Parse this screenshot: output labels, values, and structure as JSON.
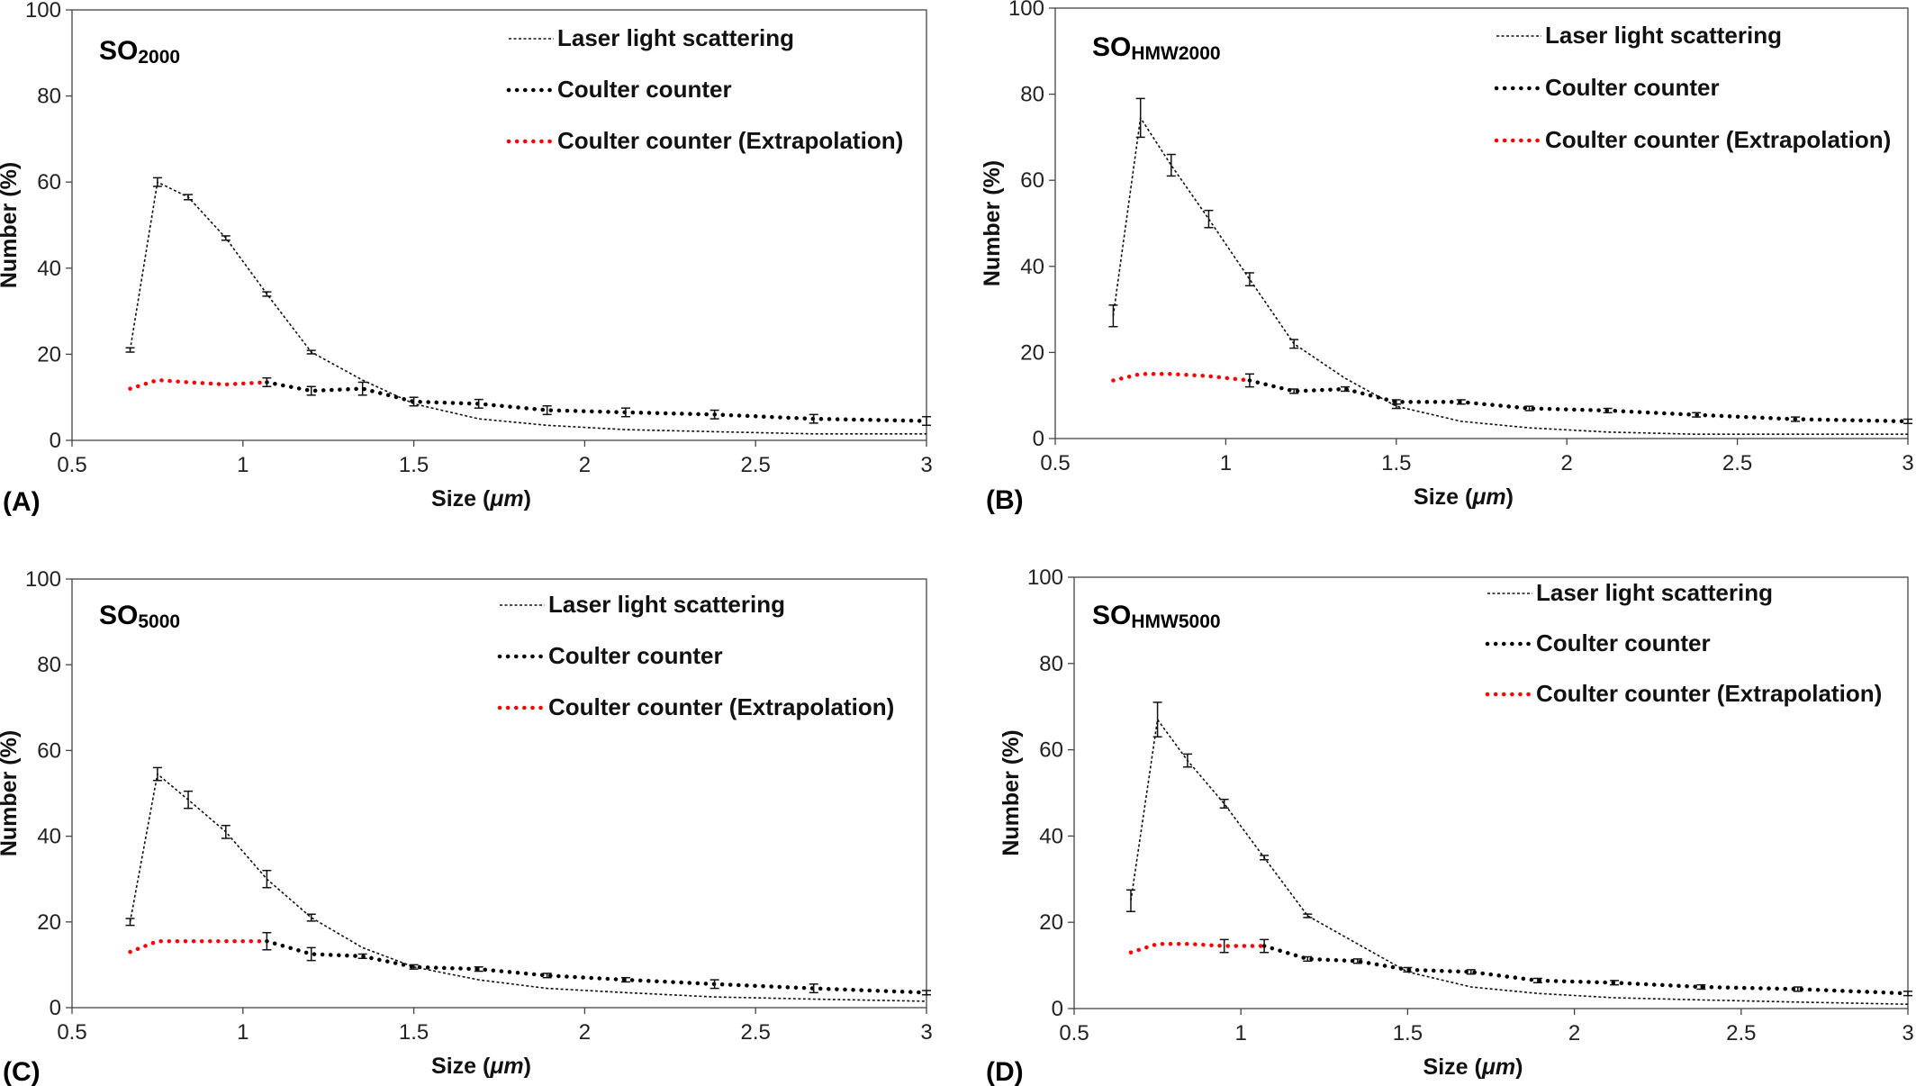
{
  "colors": {
    "laser": "#111111",
    "coulter": "#000000",
    "extrapolation": "#ff0000"
  },
  "chart_data": [
    {
      "type": "line",
      "panel_label": "(A)",
      "title_main": "SO",
      "title_sub": "2000",
      "xlabel_prefix": "Size (",
      "xlabel_unit": "μm",
      "xlabel_suffix": ")",
      "ylabel": "Number (%)",
      "xlim": [
        0.5,
        3
      ],
      "ylim": [
        0,
        100
      ],
      "xticks": [
        0.5,
        1,
        1.5,
        2,
        2.5,
        3
      ],
      "xtick_labels": [
        "0.5",
        "1",
        "1.5",
        "2",
        "2.5",
        "3"
      ],
      "yticks": [
        0,
        20,
        40,
        60,
        80,
        100
      ],
      "ytick_labels": [
        "0",
        "20",
        "40",
        "60",
        "80",
        "100"
      ],
      "legend": [
        "Laser light scattering",
        "Coulter counter",
        "Coulter counter (Extrapolation)"
      ],
      "series": [
        {
          "name": "Laser light scattering",
          "style": "thin-dotted",
          "x": [
            0.67,
            0.75,
            0.84,
            0.95,
            1.07,
            1.2,
            1.35,
            1.5,
            1.69,
            1.89,
            2.12,
            2.38,
            2.67,
            3.0
          ],
          "y": [
            21,
            60,
            56.5,
            47,
            34,
            20.5,
            14,
            8.5,
            5,
            3.5,
            2.5,
            2,
            1.5,
            1.5
          ],
          "err": [
            0.5,
            1,
            0.6,
            0.5,
            0.5,
            0.4,
            0,
            0,
            0,
            0,
            0,
            0,
            0,
            0
          ]
        },
        {
          "name": "Coulter counter",
          "style": "thick-dotted",
          "x": [
            1.07,
            1.2,
            1.35,
            1.5,
            1.69,
            1.89,
            2.12,
            2.38,
            2.67,
            3.0
          ],
          "y": [
            13.5,
            11.5,
            12,
            9,
            8.5,
            7,
            6.5,
            6,
            5,
            4.5
          ],
          "err": [
            1,
            1,
            1.5,
            1,
            1,
            1,
            1,
            1,
            1,
            1
          ]
        },
        {
          "name": "Coulter counter (Extrapolation)",
          "style": "red-dotted",
          "x": [
            0.67,
            0.75,
            0.84,
            0.95,
            1.07
          ],
          "y": [
            12,
            14,
            13.5,
            13,
            13.5
          ],
          "err": []
        }
      ]
    },
    {
      "type": "line",
      "panel_label": "(B)",
      "title_main": "SO",
      "title_sub": "HMW2000",
      "xlabel_prefix": "Size (",
      "xlabel_unit": "μm",
      "xlabel_suffix": ")",
      "ylabel": "Number (%)",
      "xlim": [
        0.5,
        3
      ],
      "ylim": [
        0,
        100
      ],
      "xticks": [
        0.5,
        1,
        1.5,
        2,
        2.5,
        3
      ],
      "xtick_labels": [
        "0.5",
        "1",
        "1.5",
        "2",
        "2.5",
        "3"
      ],
      "yticks": [
        0,
        20,
        40,
        60,
        80,
        100
      ],
      "ytick_labels": [
        "0",
        "20",
        "40",
        "60",
        "80",
        "100"
      ],
      "legend": [
        "Laser light scattering",
        "Coulter counter",
        "Coulter counter (Extrapolation)"
      ],
      "series": [
        {
          "name": "Laser light scattering",
          "style": "thin-dotted",
          "x": [
            0.67,
            0.75,
            0.84,
            0.95,
            1.07,
            1.2,
            1.35,
            1.5,
            1.69,
            1.89,
            2.12,
            2.38,
            2.67,
            3.0
          ],
          "y": [
            28.5,
            74.5,
            63.5,
            51,
            37,
            22,
            14,
            7.5,
            4,
            2.5,
            1.5,
            1,
            1,
            1
          ],
          "err": [
            2.5,
            4.5,
            2.5,
            2,
            1.5,
            1,
            0,
            0.5,
            0,
            0,
            0,
            0,
            0,
            0
          ]
        },
        {
          "name": "Coulter counter",
          "style": "thick-dotted",
          "x": [
            1.07,
            1.2,
            1.35,
            1.5,
            1.69,
            1.89,
            2.12,
            2.38,
            2.67,
            3.0
          ],
          "y": [
            13.5,
            11,
            11.5,
            8.5,
            8.5,
            7,
            6.5,
            5.5,
            4.5,
            4
          ],
          "err": [
            1.5,
            0.5,
            0.5,
            0.5,
            0.5,
            0.5,
            0.5,
            0.5,
            0.5,
            0.5
          ]
        },
        {
          "name": "Coulter counter (Extrapolation)",
          "style": "red-dotted",
          "x": [
            0.67,
            0.75,
            0.84,
            0.95,
            1.07
          ],
          "y": [
            13.5,
            15,
            15,
            14.5,
            13.5
          ],
          "err": []
        }
      ]
    },
    {
      "type": "line",
      "panel_label": "(C)",
      "title_main": "SO",
      "title_sub": "5000",
      "xlabel_prefix": "Size (",
      "xlabel_unit": "μm",
      "xlabel_suffix": ")",
      "ylabel": "Number (%)",
      "xlim": [
        0.5,
        3
      ],
      "ylim": [
        0,
        100
      ],
      "xticks": [
        0.5,
        1,
        1.5,
        2,
        2.5,
        3
      ],
      "xtick_labels": [
        "0.5",
        "1",
        "1.5",
        "2",
        "2.5",
        "3"
      ],
      "yticks": [
        0,
        20,
        40,
        60,
        80,
        100
      ],
      "ytick_labels": [
        "0",
        "20",
        "40",
        "60",
        "80",
        "100"
      ],
      "legend": [
        "Laser light scattering",
        "Coulter counter",
        "Coulter counter (Extrapolation)"
      ],
      "series": [
        {
          "name": "Laser light scattering",
          "style": "thin-dotted",
          "x": [
            0.67,
            0.75,
            0.84,
            0.95,
            1.07,
            1.2,
            1.35,
            1.5,
            1.69,
            1.89,
            2.12,
            2.38,
            2.67,
            3.0
          ],
          "y": [
            20,
            54.5,
            48.5,
            41,
            30,
            21,
            14,
            9.5,
            6.5,
            4.5,
            3.5,
            2.5,
            2,
            1.5
          ],
          "err": [
            0.8,
            1.5,
            2,
            1.5,
            2,
            0.8,
            0,
            0,
            0,
            0,
            0,
            0,
            0,
            0
          ]
        },
        {
          "name": "Coulter counter",
          "style": "thick-dotted",
          "x": [
            1.07,
            1.2,
            1.35,
            1.5,
            1.69,
            1.89,
            2.12,
            2.38,
            2.67,
            3.0
          ],
          "y": [
            15.5,
            12.5,
            12,
            9.5,
            9,
            7.5,
            6.5,
            5.5,
            4.5,
            3.5
          ],
          "err": [
            2,
            1.5,
            0.5,
            0.5,
            0.5,
            0.5,
            0.5,
            1,
            1,
            0.5
          ]
        },
        {
          "name": "Coulter counter (Extrapolation)",
          "style": "red-dotted",
          "x": [
            0.67,
            0.75,
            0.84,
            0.95,
            1.07
          ],
          "y": [
            13,
            15.5,
            15.5,
            15.5,
            15.5
          ],
          "err": []
        }
      ]
    },
    {
      "type": "line",
      "panel_label": "(D)",
      "title_main": "SO",
      "title_sub": "HMW5000",
      "xlabel_prefix": "Size (",
      "xlabel_unit": "μm",
      "xlabel_suffix": ")",
      "ylabel": "Number (%)",
      "xlim": [
        0.5,
        3
      ],
      "ylim": [
        0,
        100
      ],
      "xticks": [
        0.5,
        1,
        1.5,
        2,
        2.5,
        3
      ],
      "xtick_labels": [
        "0.5",
        "1",
        "1.5",
        "2",
        "2.5",
        "3"
      ],
      "yticks": [
        0,
        20,
        40,
        60,
        80,
        100
      ],
      "ytick_labels": [
        "0",
        "20",
        "40",
        "60",
        "80",
        "100"
      ],
      "legend": [
        "Laser light scattering",
        "Coulter counter",
        "Coulter counter (Extrapolation)"
      ],
      "series": [
        {
          "name": "Laser light scattering",
          "style": "thin-dotted",
          "x": [
            0.67,
            0.75,
            0.84,
            0.95,
            1.07,
            1.2,
            1.35,
            1.5,
            1.69,
            1.89,
            2.12,
            2.38,
            2.67,
            3.0
          ],
          "y": [
            25,
            67,
            57.5,
            47.5,
            35,
            21.5,
            15,
            8.5,
            5,
            3.5,
            2.5,
            2,
            1.5,
            1
          ],
          "err": [
            2.5,
            4,
            1.5,
            1,
            0.5,
            0.4,
            0,
            0,
            0,
            0,
            0,
            0,
            0,
            0
          ]
        },
        {
          "name": "Coulter counter",
          "style": "thick-dotted",
          "x": [
            1.07,
            1.2,
            1.35,
            1.5,
            1.69,
            1.89,
            2.12,
            2.38,
            2.67,
            3.0
          ],
          "y": [
            14.5,
            11.5,
            11,
            9,
            8.5,
            6.5,
            6,
            5,
            4.5,
            3.5
          ],
          "err": [
            1.5,
            0.5,
            0.5,
            0.5,
            0.5,
            0.5,
            0.5,
            0.5,
            0.5,
            0.5
          ]
        },
        {
          "name": "Coulter counter (Extrapolation)",
          "style": "red-dotted",
          "x": [
            0.67,
            0.75,
            0.84,
            0.95,
            1.07
          ],
          "y": [
            13,
            15,
            15,
            14.5,
            14.5
          ],
          "err": [
            0,
            0,
            0,
            1.5,
            0
          ]
        }
      ]
    }
  ]
}
